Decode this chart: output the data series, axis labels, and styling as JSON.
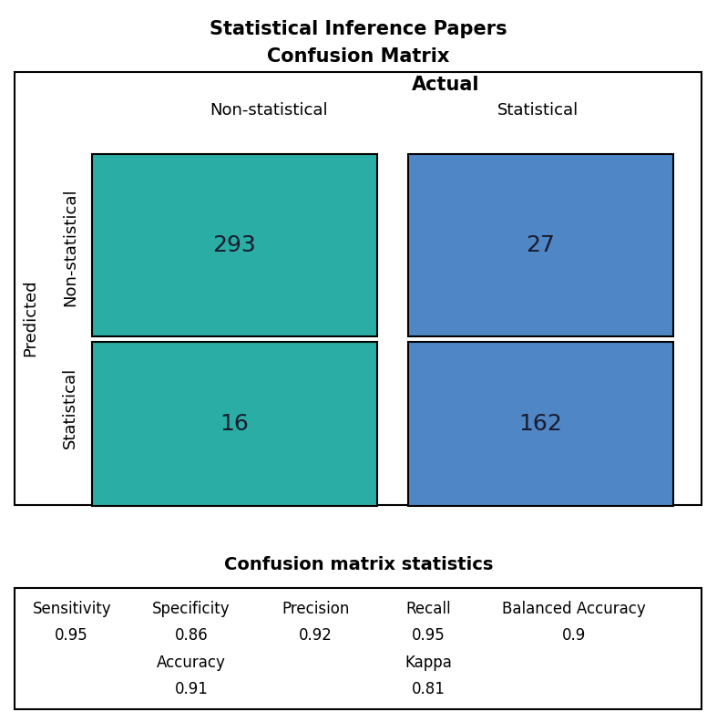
{
  "title_line1": "Statistical Inference Papers",
  "title_line2": "Confusion Matrix",
  "actual_label": "Actual",
  "predicted_label": "Predicted",
  "col_labels": [
    "Non-statistical",
    "Statistical"
  ],
  "row_labels": [
    "Non-statistical",
    "Statistical"
  ],
  "matrix_values": [
    [
      293,
      27
    ],
    [
      16,
      162
    ]
  ],
  "teal_color": "#2AADA4",
  "blue_color": "#4F86C6",
  "cell_text_color": "#1a1a2e",
  "stats_title": "Confusion matrix statistics",
  "stats_metrics": [
    "Sensitivity",
    "Specificity",
    "Precision",
    "Recall",
    "Balanced Accuracy"
  ],
  "stats_values": [
    "0.95",
    "0.86",
    "0.92",
    "0.95",
    "0.9"
  ],
  "stats_extra_labels": [
    "",
    "Accuracy",
    "",
    "Kappa",
    ""
  ],
  "stats_extra_values": [
    "",
    "0.91",
    "",
    "0.81",
    ""
  ],
  "title_fontsize": 15,
  "cell_fontsize": 18,
  "label_fontsize": 13,
  "stats_fontsize": 12,
  "bg_color": "#ffffff",
  "fig_width": 7.87,
  "fig_height": 7.92,
  "fig_dpi": 100
}
